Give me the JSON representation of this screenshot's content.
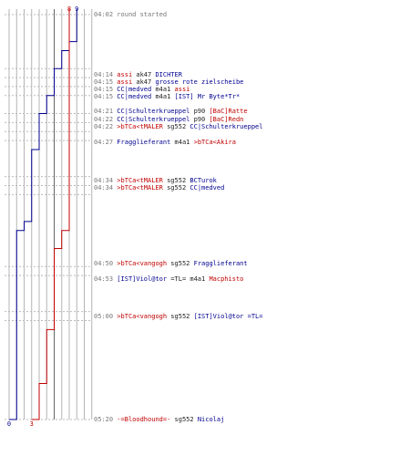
{
  "colors": {
    "red_team": "#c00000",
    "blue_team": "#000090",
    "timestamp": "#777777",
    "weapon": "#222222",
    "grid": "#b4b4b4"
  },
  "chart_data": {
    "type": "line",
    "blue_start": "9",
    "red_start": "8",
    "blue_end": "0",
    "red_end": "3",
    "blue_series": [
      9,
      9,
      9,
      8,
      7,
      7,
      6,
      6,
      6,
      5,
      5,
      4,
      4,
      4,
      4,
      3,
      3,
      3,
      3,
      3,
      3,
      3,
      3,
      2,
      1,
      1,
      1,
      1,
      1,
      1,
      1,
      1,
      1,
      1,
      1,
      1,
      1,
      1,
      1,
      1,
      1,
      1,
      1,
      1,
      1,
      0
    ],
    "red_series": [
      8,
      8,
      8,
      8,
      8,
      8,
      8,
      8,
      8,
      8,
      8,
      8,
      8,
      8,
      8,
      8,
      8,
      8,
      8,
      8,
      8,
      8,
      8,
      8,
      7,
      7,
      6,
      6,
      6,
      6,
      6,
      6,
      6,
      6,
      6,
      5,
      5,
      5,
      5,
      5,
      5,
      4,
      4,
      4,
      4,
      3
    ],
    "tick_rows": [
      0,
      6,
      7,
      8,
      9,
      11,
      12,
      13,
      14,
      18,
      19,
      20,
      28,
      29,
      33,
      34,
      45
    ]
  },
  "events": [
    {
      "time": "04:02",
      "parts": [
        {
          "c": "grey",
          "t": "round started"
        }
      ]
    },
    {
      "time": "04:14",
      "parts": [
        {
          "c": "red",
          "t": "assi"
        },
        {
          "c": "blk",
          "t": " ak47 "
        },
        {
          "c": "blue",
          "t": "DICHTER"
        }
      ]
    },
    {
      "time": "04:15",
      "parts": [
        {
          "c": "red",
          "t": "assi"
        },
        {
          "c": "blk",
          "t": " ak47 "
        },
        {
          "c": "blue",
          "t": "grosse rote zielscheibe"
        }
      ]
    },
    {
      "time": "04:15",
      "parts": [
        {
          "c": "blue",
          "t": "CC|medved"
        },
        {
          "c": "blk",
          "t": " m4a1 "
        },
        {
          "c": "red",
          "t": "assi"
        }
      ]
    },
    {
      "time": "04:15",
      "parts": [
        {
          "c": "blue",
          "t": "CC|medved"
        },
        {
          "c": "blk",
          "t": " m4a1 "
        },
        {
          "c": "blue",
          "t": "[IST] Mr Byte*Tr*"
        }
      ]
    },
    {
      "time": "04:21",
      "parts": [
        {
          "c": "blue",
          "t": "CC|Schulterkrueppel"
        },
        {
          "c": "blk",
          "t": " p90 "
        },
        {
          "c": "red",
          "t": "[BaC]Ratte"
        }
      ]
    },
    {
      "time": "04:22",
      "parts": [
        {
          "c": "blue",
          "t": "CC|Schulterkrueppel"
        },
        {
          "c": "blk",
          "t": " p90 "
        },
        {
          "c": "red",
          "t": "[BaC]Redn"
        }
      ]
    },
    {
      "time": "04:22",
      "parts": [
        {
          "c": "red",
          "t": ">bTCa<tMALER"
        },
        {
          "c": "blk",
          "t": " sg552 "
        },
        {
          "c": "blue",
          "t": "CC|Schulterkrueppel"
        }
      ]
    },
    {
      "time": "04:27",
      "parts": [
        {
          "c": "blue",
          "t": "Fragglieferant"
        },
        {
          "c": "blk",
          "t": " m4a1 "
        },
        {
          "c": "red",
          "t": ">bTCa<Akira"
        }
      ]
    },
    {
      "time": "04:34",
      "parts": [
        {
          "c": "red",
          "t": ">bTCa<tMALER"
        },
        {
          "c": "blk",
          "t": " sg552 "
        },
        {
          "c": "blue",
          "t": "BCTurok"
        }
      ]
    },
    {
      "time": "04:34",
      "parts": [
        {
          "c": "red",
          "t": ">bTCa<tMALER"
        },
        {
          "c": "blk",
          "t": " sg552 "
        },
        {
          "c": "blue",
          "t": "CC|medved"
        }
      ]
    },
    {
      "time": "04:50",
      "parts": [
        {
          "c": "red",
          "t": ">bTCa<vangogh"
        },
        {
          "c": "blk",
          "t": " sg552 "
        },
        {
          "c": "blue",
          "t": "Fragglieferant"
        }
      ]
    },
    {
      "time": "04:53",
      "parts": [
        {
          "c": "blue",
          "t": "[IST]Viol@tor"
        },
        {
          "c": "blk",
          "t": "  =TL= m4a1 "
        },
        {
          "c": "red",
          "t": "Macphisto"
        }
      ]
    },
    {
      "time": "05:00",
      "parts": [
        {
          "c": "red",
          "t": ">bTCa<vangogh"
        },
        {
          "c": "blk",
          "t": " sg552 "
        },
        {
          "c": "blue",
          "t": "[IST]Viol@tor  =TL="
        }
      ]
    },
    {
      "time": "05:20",
      "parts": [
        {
          "c": "red",
          "t": "-=Bloodhound=-"
        },
        {
          "c": "blk",
          "t": " sg552 "
        },
        {
          "c": "blue",
          "t": "Nicolaj"
        }
      ]
    }
  ]
}
